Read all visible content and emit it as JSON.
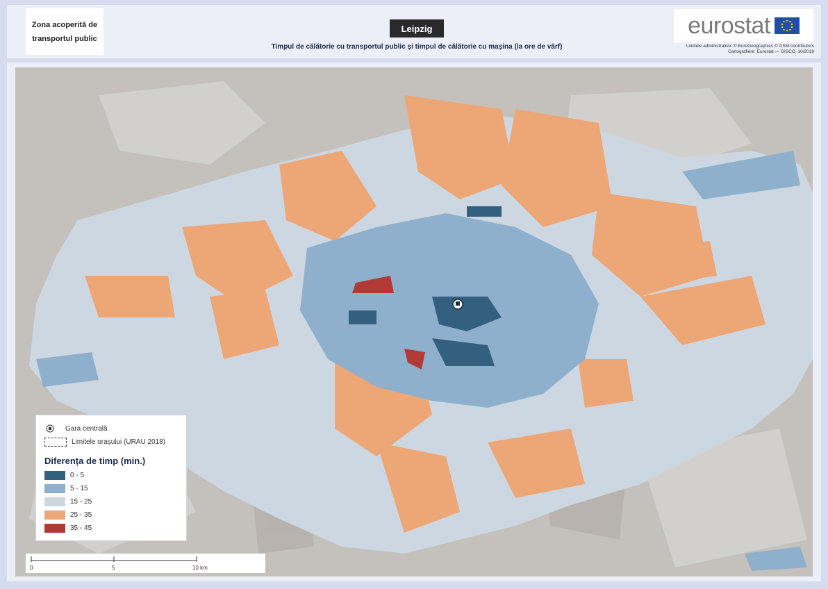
{
  "header": {
    "badge_label": "Zona acoperită de transportul public",
    "city": "Leipzig",
    "subtitle": "Timpul de călătorie cu transportul public și timpul de călătorie cu mașina (la ore de vârf)",
    "logo_text": "eurostat",
    "credit_line1": "Limitele administrative: © EuroGeographics © OSM contributors",
    "credit_line2": "Cartografiere: Eurostat — GISCO, 10/2019"
  },
  "legend": {
    "station_label": "Gara centrală",
    "boundary_label": "Limitele orașului (URAU 2018)",
    "title": "Diferența de timp (min.)",
    "classes": [
      {
        "label": "0 - 5",
        "color": "#33607f"
      },
      {
        "label": "5 - 15",
        "color": "#8fb0cc"
      },
      {
        "label": "15 - 25",
        "color": "#cdd7e2"
      },
      {
        "label": "25 - 35",
        "color": "#eda676"
      },
      {
        "label": "35 - 45",
        "color": "#b23a36"
      }
    ]
  },
  "scalebar": {
    "labels": [
      "0",
      "5",
      "10 km"
    ]
  },
  "colors": {
    "background": "#c4c1bd",
    "accent": "#1b2a4a"
  }
}
